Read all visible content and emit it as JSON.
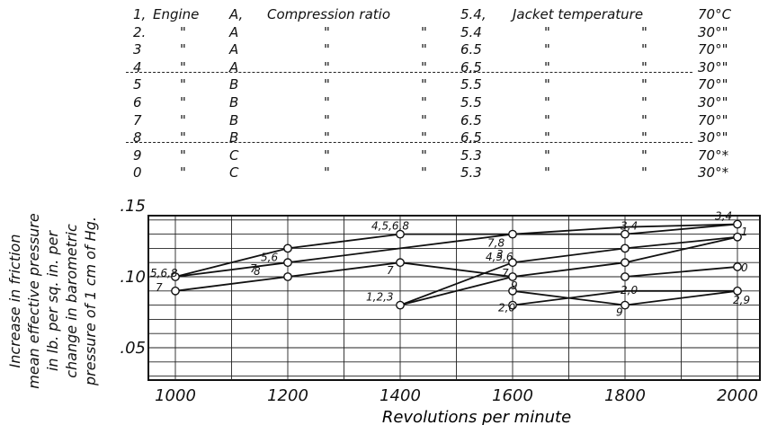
{
  "legend": {
    "rows": [
      {
        "num": "1,",
        "engine_word": "Engine",
        "engine": "A,",
        "comp_word": "Compression ratio",
        "ratio": "5.4,",
        "jacket_word": "Jacket temperature",
        "temp": "70°C"
      },
      {
        "num": "2.",
        "engine_word": "\"",
        "engine": "A",
        "comp_word": "\"",
        "comp_ditto": "\"",
        "ratio": "5.4",
        "jacket_word": "\"",
        "jacket_ditto": "\"",
        "temp": "30°\""
      },
      {
        "num": "3",
        "engine_word": "\"",
        "engine": "A",
        "comp_word": "\"",
        "comp_ditto": "\"",
        "ratio": "6.5",
        "jacket_word": "\"",
        "jacket_ditto": "\"",
        "temp": "70°\""
      },
      {
        "num": "4",
        "engine_word": "\"",
        "engine": "A",
        "comp_word": "\"",
        "comp_ditto": "\"",
        "ratio": "6.5",
        "jacket_word": "\"",
        "jacket_ditto": "\"",
        "temp": "30°\""
      },
      {
        "num": "5",
        "engine_word": "\"",
        "engine": "B",
        "comp_word": "\"",
        "comp_ditto": "\"",
        "ratio": "5.5",
        "jacket_word": "\"",
        "jacket_ditto": "\"",
        "temp": "70°\""
      },
      {
        "num": "6",
        "engine_word": "\"",
        "engine": "B",
        "comp_word": "\"",
        "comp_ditto": "\"",
        "ratio": "5.5",
        "jacket_word": "\"",
        "jacket_ditto": "\"",
        "temp": "30°\""
      },
      {
        "num": "7",
        "engine_word": "\"",
        "engine": "B",
        "comp_word": "\"",
        "comp_ditto": "\"",
        "ratio": "6.5",
        "jacket_word": "\"",
        "jacket_ditto": "\"",
        "temp": "70°\""
      },
      {
        "num": "8",
        "engine_word": "\"",
        "engine": "B",
        "comp_word": "\"",
        "comp_ditto": "\"",
        "ratio": "6.5",
        "jacket_word": "\"",
        "jacket_ditto": "\"",
        "temp": "30°\""
      },
      {
        "num": "9",
        "engine_word": "\"",
        "engine": "C",
        "comp_word": "\"",
        "comp_ditto": "\"",
        "ratio": "5.3",
        "jacket_word": "\"",
        "jacket_ditto": "\"",
        "temp": "70°*"
      },
      {
        "num": "0",
        "engine_word": "\"",
        "engine": "C",
        "comp_word": "\"",
        "comp_ditto": "\"",
        "ratio": "5.3",
        "jacket_word": "\"",
        "jacket_ditto": "\"",
        "temp": "30°*"
      }
    ]
  },
  "chart_data": {
    "type": "line",
    "xlabel": "Revolutions per minute",
    "ylabel_lines": [
      "Increase in friction",
      "mean effective pressure",
      "in lb. per sq. in. per",
      "change in barometric",
      "pressure of 1 cm of Hg."
    ],
    "x_ticks": [
      "1000",
      "1200",
      "1400",
      "1600",
      "1800",
      "2000"
    ],
    "y_ticks": [
      ".05",
      ".10",
      ".15"
    ],
    "xlim": [
      1000,
      2000
    ],
    "ylim": [
      0.02,
      0.17
    ],
    "grid": true,
    "series": [
      {
        "points": [
          [
            1000,
            0.1
          ],
          [
            1200,
            0.12
          ],
          [
            1400,
            0.13
          ],
          [
            1600,
            0.13
          ],
          [
            1800,
            0.13
          ],
          [
            2000,
            0.137
          ]
        ]
      },
      {
        "points": [
          [
            1000,
            0.1
          ],
          [
            1200,
            0.11
          ],
          [
            1400,
            0.12
          ],
          [
            1600,
            0.13
          ],
          [
            1800,
            0.135
          ],
          [
            2000,
            0.137
          ]
        ]
      },
      {
        "points": [
          [
            1000,
            0.09
          ],
          [
            1200,
            0.1
          ],
          [
            1400,
            0.11
          ],
          [
            1600,
            0.1
          ]
        ]
      },
      {
        "points": [
          [
            1400,
            0.08
          ],
          [
            1600,
            0.1
          ],
          [
            1800,
            0.11
          ],
          [
            2000,
            0.128
          ]
        ]
      },
      {
        "points": [
          [
            1400,
            0.08
          ],
          [
            1600,
            0.11
          ],
          [
            1800,
            0.12
          ],
          [
            2000,
            0.128
          ]
        ]
      },
      {
        "points": [
          [
            1600,
            0.08
          ],
          [
            1800,
            0.09
          ],
          [
            2000,
            0.09
          ]
        ]
      },
      {
        "points": [
          [
            1600,
            0.09
          ],
          [
            1800,
            0.08
          ],
          [
            2000,
            0.09
          ]
        ]
      },
      {
        "points": [
          [
            1800,
            0.1
          ],
          [
            2000,
            0.107
          ]
        ]
      }
    ],
    "markers": [
      [
        1000,
        0.1
      ],
      [
        1000,
        0.09
      ],
      [
        1200,
        0.12
      ],
      [
        1200,
        0.11
      ],
      [
        1200,
        0.1
      ],
      [
        1400,
        0.13
      ],
      [
        1400,
        0.11
      ],
      [
        1400,
        0.08
      ],
      [
        1600,
        0.13
      ],
      [
        1600,
        0.11
      ],
      [
        1600,
        0.1
      ],
      [
        1600,
        0.09
      ],
      [
        1600,
        0.08
      ],
      [
        1800,
        0.13
      ],
      [
        1800,
        0.12
      ],
      [
        1800,
        0.11
      ],
      [
        1800,
        0.1
      ],
      [
        1800,
        0.08
      ],
      [
        2000,
        0.137
      ],
      [
        2000,
        0.128
      ],
      [
        2000,
        0.107
      ],
      [
        2000,
        0.09
      ]
    ],
    "annotations": [
      {
        "text": "5,6,8",
        "x": 1000,
        "y": 0.1
      },
      {
        "text": "7",
        "x": 1000,
        "y": 0.09
      },
      {
        "text": "5,6",
        "x": 1200,
        "y": 0.12
      },
      {
        "text": "8",
        "x": 1200,
        "y": 0.11
      },
      {
        "text": "7",
        "x": 1200,
        "y": 0.1
      },
      {
        "text": "4,5,6,8",
        "x": 1400,
        "y": 0.13
      },
      {
        "text": "7",
        "x": 1400,
        "y": 0.11
      },
      {
        "text": "1,2,3",
        "x": 1400,
        "y": 0.08
      },
      {
        "text": "7,8",
        "x": 1600,
        "y": 0.13
      },
      {
        "text": "4,5,6",
        "x": 1600,
        "y": 0.11
      },
      {
        "text": "3",
        "x": 1600,
        "y": 0.11
      },
      {
        "text": "7",
        "x": 1600,
        "y": 0.1
      },
      {
        "text": "9",
        "x": 1600,
        "y": 0.09
      },
      {
        "text": "2,0",
        "x": 1600,
        "y": 0.08
      },
      {
        "text": "3,4",
        "x": 1800,
        "y": 0.13
      },
      {
        "text": "2,0",
        "x": 1800,
        "y": 0.09
      },
      {
        "text": "9",
        "x": 1800,
        "y": 0.08
      },
      {
        "text": "3,4",
        "x": 2000,
        "y": 0.137
      },
      {
        "text": "1",
        "x": 2000,
        "y": 0.128
      },
      {
        "text": "0",
        "x": 2000,
        "y": 0.107
      },
      {
        "text": "2,9",
        "x": 2000,
        "y": 0.09
      }
    ]
  }
}
